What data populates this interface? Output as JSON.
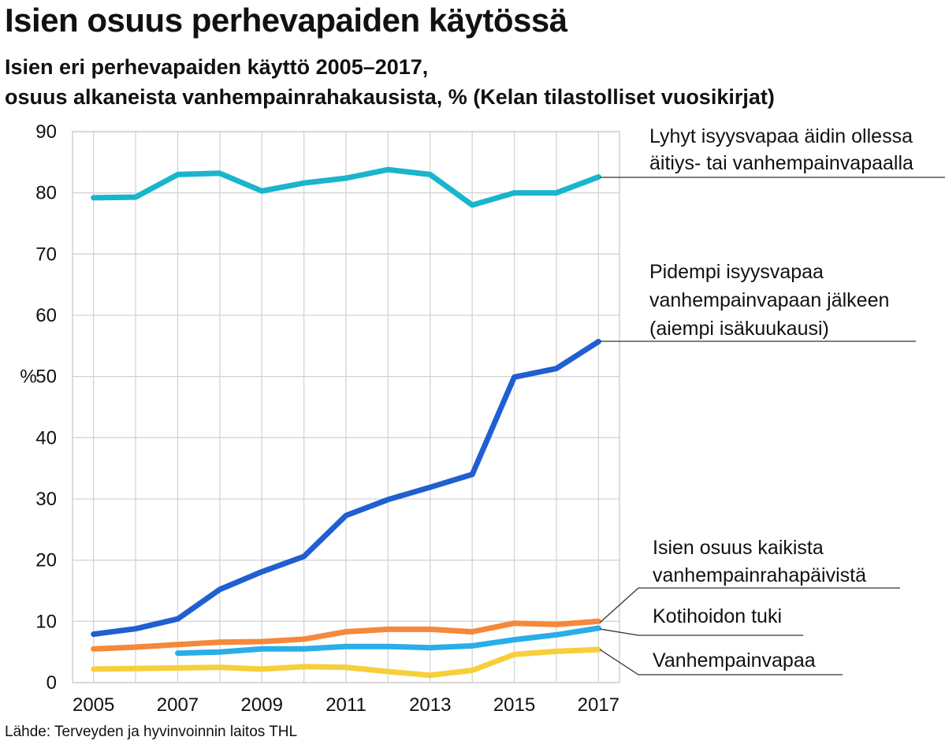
{
  "title": "Isien osuus perhevapaiden käytössä",
  "subtitle_line1": "Isien eri perhevapaiden käyttö 2005–2017,",
  "subtitle_line2": "osuus alkaneista vanhempainrahakausista, % (Kelan tilastolliset vuosikirjat)",
  "source": "Lähde: Terveyden ja hyvinvoinnin laitos THL",
  "chart_data": {
    "type": "line",
    "ylabel": "%",
    "ylim": [
      0,
      90
    ],
    "yticks": [
      0,
      10,
      20,
      30,
      40,
      50,
      60,
      70,
      80,
      90
    ],
    "xlim": [
      2004.5,
      2017.5
    ],
    "xticks": [
      2005,
      2007,
      2009,
      2011,
      2013,
      2015,
      2017
    ],
    "grid": true,
    "series": [
      {
        "name": "Lyhyt isyysvapaa äidin ollessa äitiys- tai vanhempainvapaalla",
        "label_lines": [
          "Lyhyt isyysvapaa äidin ollessa",
          "äitiys- tai vanhempainvapaalla"
        ],
        "color": "#19b5cc",
        "x": [
          2005,
          2006,
          2007,
          2008,
          2009,
          2010,
          2011,
          2012,
          2013,
          2014,
          2015,
          2016,
          2017
        ],
        "values": [
          79.2,
          79.3,
          83.0,
          83.2,
          80.3,
          81.6,
          82.4,
          83.8,
          83.0,
          78.0,
          80.0,
          80.0,
          82.6
        ]
      },
      {
        "name": "Pidempi isyysvapaa vanhempainvapaan jälkeen (aiempi isäkuukausi)",
        "label_lines": [
          "Pidempi isyysvapaa",
          "vanhempainvapaan jälkeen",
          "(aiempi isäkuukausi)"
        ],
        "color": "#1f5fd1",
        "x": [
          2005,
          2006,
          2007,
          2008,
          2009,
          2010,
          2011,
          2012,
          2013,
          2014,
          2015,
          2016,
          2017
        ],
        "values": [
          7.9,
          8.8,
          10.4,
          15.2,
          18.1,
          20.6,
          27.3,
          29.9,
          31.9,
          34.0,
          49.9,
          51.3,
          55.7
        ]
      },
      {
        "name": "Isien osuus kaikista vanhempainrahapäivistä",
        "label_lines": [
          "Isien osuus kaikista",
          "vanhempainrahapäivistä"
        ],
        "color": "#f5883a",
        "x": [
          2005,
          2006,
          2007,
          2008,
          2009,
          2010,
          2011,
          2012,
          2013,
          2014,
          2015,
          2016,
          2017
        ],
        "values": [
          5.5,
          5.8,
          6.2,
          6.6,
          6.7,
          7.1,
          8.3,
          8.7,
          8.7,
          8.3,
          9.7,
          9.5,
          10.0
        ]
      },
      {
        "name": "Kotihoidon tuki",
        "label_lines": [
          "Kotihoidon tuki"
        ],
        "color": "#2aaee8",
        "x": [
          2007,
          2008,
          2009,
          2010,
          2011,
          2012,
          2013,
          2014,
          2015,
          2016,
          2017
        ],
        "values": [
          4.8,
          5.0,
          5.5,
          5.5,
          5.9,
          5.9,
          5.7,
          6.0,
          7.0,
          7.8,
          8.9
        ]
      },
      {
        "name": "Vanhempainvapaa",
        "label_lines": [
          "Vanhempainvapaa"
        ],
        "color": "#f7cf3b",
        "x": [
          2005,
          2006,
          2007,
          2008,
          2009,
          2010,
          2011,
          2012,
          2013,
          2014,
          2015,
          2016,
          2017
        ],
        "values": [
          2.2,
          2.3,
          2.4,
          2.5,
          2.2,
          2.6,
          2.5,
          1.8,
          1.2,
          2.0,
          4.6,
          5.1,
          5.4
        ]
      }
    ]
  }
}
